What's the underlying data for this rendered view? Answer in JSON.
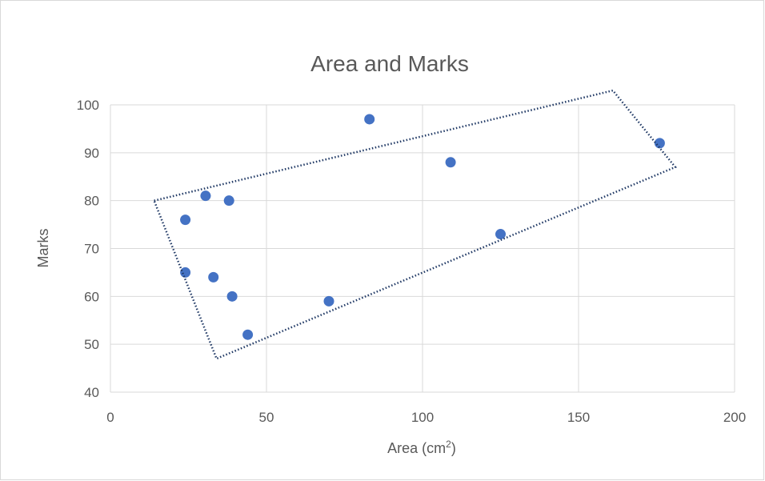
{
  "chart_data": {
    "type": "scatter",
    "title": "Area and Marks",
    "xlabel": "Area (cm",
    "xlabel_superscript": "2",
    "xlabel_suffix": ")",
    "ylabel": "Marks",
    "xlim": [
      0,
      200
    ],
    "ylim": [
      40,
      100
    ],
    "x_ticks": [
      "0",
      "50",
      "100",
      "150",
      "200"
    ],
    "y_ticks": [
      "40",
      "50",
      "60",
      "70",
      "80",
      "90",
      "100"
    ],
    "grid": true,
    "legend": "none",
    "marker_color": "#4472c4",
    "points": [
      {
        "x": 24,
        "y": 65
      },
      {
        "x": 24,
        "y": 76
      },
      {
        "x": 30.5,
        "y": 81
      },
      {
        "x": 33,
        "y": 64
      },
      {
        "x": 38,
        "y": 80
      },
      {
        "x": 39,
        "y": 60
      },
      {
        "x": 44,
        "y": 52
      },
      {
        "x": 70,
        "y": 59
      },
      {
        "x": 83,
        "y": 97
      },
      {
        "x": 109,
        "y": 88
      },
      {
        "x": 125,
        "y": 73
      },
      {
        "x": 176,
        "y": 92
      }
    ],
    "annotation": {
      "shape": "dotted-rotated-rectangle",
      "color": "#1f3864",
      "corners": [
        {
          "x": 14,
          "y": 80
        },
        {
          "x": 161,
          "y": 103
        },
        {
          "x": 181,
          "y": 87
        },
        {
          "x": 34,
          "y": 47
        }
      ]
    }
  }
}
